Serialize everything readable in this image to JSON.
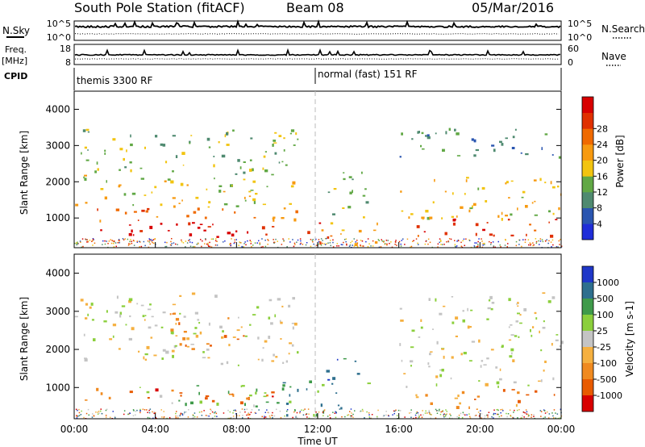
{
  "header": {
    "title": "South Pole Station (fitACF)",
    "beam": "Beam 08",
    "date": "05/Mar/2016"
  },
  "panels": {
    "nsky": {
      "label": "N.Sky",
      "right_label": "N.Search",
      "ticks_left": [
        "10^5",
        "10^0"
      ],
      "ticks_right": [
        "10^5",
        "10^0"
      ]
    },
    "freq": {
      "label_top": "Freq.",
      "label_unit": "[MHz]",
      "right_label": "Nave",
      "ticks_left": [
        "18",
        "8"
      ],
      "ticks_right": [
        "60",
        "0"
      ]
    },
    "cpid": {
      "label": "CPID",
      "mode_left": "themis 3300 RF",
      "mode_right": "normal (fast) 151 RF"
    }
  },
  "axes": {
    "xlabel": "Time UT",
    "ylabel": "Slant Range [km]",
    "xticks": [
      "00:00",
      "04:00",
      "08:00",
      "12:00",
      "16:00",
      "20:00",
      "00:00"
    ],
    "yticks": [
      "1000",
      "2000",
      "3000",
      "4000"
    ]
  },
  "power_scale": {
    "label": "Power [dB]",
    "ticks": [
      "4",
      "8",
      "12",
      "16",
      "20",
      "24",
      "28"
    ],
    "colors": [
      "#1f2dd8",
      "#2a55b0",
      "#4f8a70",
      "#61a845",
      "#f2c410",
      "#f79a10",
      "#f06a00",
      "#e03000",
      "#d80000"
    ]
  },
  "velocity_scale": {
    "label": "Velocity [m s-1]",
    "ticks": [
      "1000",
      "500",
      "100",
      "25",
      "-25",
      "-100",
      "-500",
      "-1000"
    ],
    "colors": [
      "#1f37c8",
      "#2e6f8e",
      "#3f9a4a",
      "#8bcf3c",
      "#c4c4c4",
      "#f5b040",
      "#f08a20",
      "#e85a00",
      "#d80000"
    ]
  },
  "chart_data": [
    {
      "type": "heatmap",
      "name": "power",
      "x_range_hours": [
        0,
        24
      ],
      "y_range_km": [
        180,
        4500
      ],
      "regions": [
        {
          "t0": 0,
          "t1": 11.5,
          "r0": 500,
          "r1": 900,
          "level": 8
        },
        {
          "t0": 0.2,
          "t1": 11,
          "r0": 900,
          "r1": 1300,
          "level": 6
        },
        {
          "t0": 0,
          "t1": 11,
          "r0": 1300,
          "r1": 2200,
          "level": 4
        },
        {
          "t0": 0.3,
          "t1": 11,
          "r0": 2200,
          "r1": 3500,
          "level": 3
        },
        {
          "t0": 11.3,
          "t1": 12.6,
          "r0": 300,
          "r1": 900,
          "level": 7
        },
        {
          "t0": 12,
          "t1": 15,
          "r0": 300,
          "r1": 900,
          "level": 5
        },
        {
          "t0": 12.5,
          "t1": 14.5,
          "r0": 1000,
          "r1": 2400,
          "level": 3
        },
        {
          "t0": 16.5,
          "t1": 24,
          "r0": 500,
          "r1": 1000,
          "level": 7
        },
        {
          "t0": 16,
          "t1": 24,
          "r0": 1000,
          "r1": 2200,
          "level": 4
        },
        {
          "t0": 16,
          "t1": 24,
          "r0": 2700,
          "r1": 3500,
          "level": 2
        }
      ]
    },
    {
      "type": "heatmap",
      "name": "velocity",
      "x_range_hours": [
        0,
        24
      ],
      "y_range_km": [
        180,
        4500
      ],
      "regions": [
        {
          "t0": 0,
          "t1": 10,
          "r0": 600,
          "r1": 1000,
          "level": 7
        },
        {
          "t0": 2.8,
          "t1": 10,
          "r0": 500,
          "r1": 1100,
          "level": 3
        },
        {
          "t0": 4,
          "t1": 8.5,
          "r0": 2000,
          "r1": 3000,
          "level": 6
        },
        {
          "t0": 0,
          "t1": 11,
          "r0": 1600,
          "r1": 3500,
          "level": 4
        },
        {
          "t0": 10,
          "t1": 14.5,
          "r0": 300,
          "r1": 1200,
          "level": 2
        },
        {
          "t0": 12,
          "t1": 14,
          "r0": 1200,
          "r1": 1800,
          "level": 1
        },
        {
          "t0": 16.8,
          "t1": 24,
          "r0": 500,
          "r1": 1000,
          "level": 6
        },
        {
          "t0": 16,
          "t1": 24,
          "r0": 1000,
          "r1": 3500,
          "level": 4
        }
      ]
    }
  ]
}
